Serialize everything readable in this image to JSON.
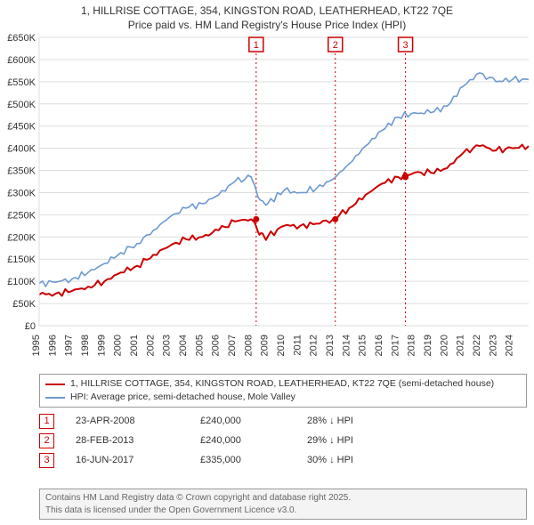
{
  "title_line1": "1, HILLRISE COTTAGE, 354, KINGSTON ROAD, LEATHERHEAD, KT22 7QE",
  "title_line2": "Price paid vs. HM Land Registry's House Price Index (HPI)",
  "chart": {
    "type": "line",
    "background_color": "#ffffff",
    "grid_color": "#dddddd",
    "axis_color": "#333333",
    "y": {
      "min": 0,
      "max": 650000,
      "step": 50000,
      "labels": [
        "£0",
        "£50K",
        "£100K",
        "£150K",
        "£200K",
        "£250K",
        "£300K",
        "£350K",
        "£400K",
        "£450K",
        "£500K",
        "£550K",
        "£600K",
        "£650K"
      ]
    },
    "x": {
      "min": 1995,
      "max": 2025,
      "labels": [
        "1995",
        "1996",
        "1997",
        "1998",
        "1999",
        "2000",
        "2001",
        "2002",
        "2003",
        "2004",
        "2005",
        "2006",
        "2007",
        "2008",
        "2009",
        "2010",
        "2011",
        "2012",
        "2013",
        "2014",
        "2015",
        "2016",
        "2017",
        "2018",
        "2019",
        "2020",
        "2021",
        "2022",
        "2023",
        "2024"
      ]
    },
    "series": [
      {
        "name": "price_paid",
        "color": "#cc0000",
        "width": 2,
        "points": [
          [
            1995,
            70000
          ],
          [
            1996,
            72000
          ],
          [
            1997,
            78000
          ],
          [
            1998,
            88000
          ],
          [
            1999,
            100000
          ],
          [
            2000,
            120000
          ],
          [
            2001,
            135000
          ],
          [
            2002,
            160000
          ],
          [
            2003,
            180000
          ],
          [
            2004,
            195000
          ],
          [
            2005,
            200000
          ],
          [
            2006,
            215000
          ],
          [
            2007,
            235000
          ],
          [
            2008,
            240000
          ],
          [
            2008.5,
            205000
          ],
          [
            2009,
            200000
          ],
          [
            2010,
            225000
          ],
          [
            2011,
            225000
          ],
          [
            2012,
            230000
          ],
          [
            2013,
            240000
          ],
          [
            2014,
            265000
          ],
          [
            2015,
            295000
          ],
          [
            2016,
            320000
          ],
          [
            2017,
            335000
          ],
          [
            2018,
            345000
          ],
          [
            2019,
            345000
          ],
          [
            2020,
            355000
          ],
          [
            2021,
            390000
          ],
          [
            2022,
            405000
          ],
          [
            2023,
            395000
          ],
          [
            2024,
            400000
          ],
          [
            2025,
            405000
          ]
        ]
      },
      {
        "name": "hpi",
        "color": "#6d99d1",
        "width": 1.6,
        "points": [
          [
            1995,
            95000
          ],
          [
            1996,
            98000
          ],
          [
            1997,
            105000
          ],
          [
            1998,
            120000
          ],
          [
            1999,
            140000
          ],
          [
            2000,
            165000
          ],
          [
            2001,
            185000
          ],
          [
            2002,
            215000
          ],
          [
            2003,
            245000
          ],
          [
            2004,
            265000
          ],
          [
            2005,
            275000
          ],
          [
            2006,
            295000
          ],
          [
            2007,
            325000
          ],
          [
            2008,
            335000
          ],
          [
            2008.5,
            285000
          ],
          [
            2009,
            275000
          ],
          [
            2010,
            305000
          ],
          [
            2011,
            300000
          ],
          [
            2012,
            310000
          ],
          [
            2013,
            330000
          ],
          [
            2014,
            365000
          ],
          [
            2015,
            405000
          ],
          [
            2016,
            440000
          ],
          [
            2017,
            470000
          ],
          [
            2018,
            480000
          ],
          [
            2019,
            480000
          ],
          [
            2020,
            495000
          ],
          [
            2021,
            540000
          ],
          [
            2022,
            570000
          ],
          [
            2023,
            550000
          ],
          [
            2024,
            555000
          ],
          [
            2025,
            555000
          ]
        ]
      }
    ],
    "markers": [
      {
        "n": "1",
        "x": 2008.3,
        "y": 240000
      },
      {
        "n": "2",
        "x": 2013.15,
        "y": 240000
      },
      {
        "n": "3",
        "x": 2017.45,
        "y": 335000
      }
    ]
  },
  "legend": {
    "row1": "1, HILLRISE COTTAGE, 354, KINGSTON ROAD, LEATHERHEAD, KT22 7QE (semi-detached house)",
    "row2": "HPI: Average price, semi-detached house, Mole Valley"
  },
  "events": [
    {
      "n": "1",
      "date": "23-APR-2008",
      "price": "£240,000",
      "diff": "28% ↓ HPI"
    },
    {
      "n": "2",
      "date": "28-FEB-2013",
      "price": "£240,000",
      "diff": "29% ↓ HPI"
    },
    {
      "n": "3",
      "date": "16-JUN-2017",
      "price": "£335,000",
      "diff": "30% ↓ HPI"
    }
  ],
  "footer_line1": "Contains HM Land Registry data © Crown copyright and database right 2025.",
  "footer_line2": "This data is licensed under the Open Government Licence v3.0."
}
